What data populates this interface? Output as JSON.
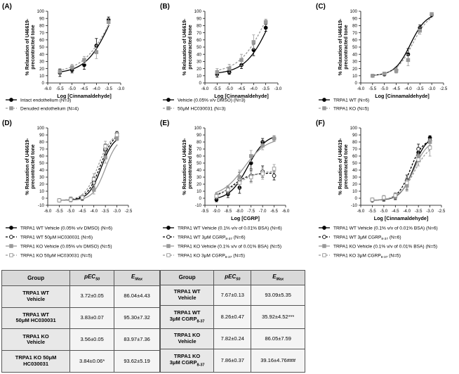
{
  "chart_data": [
    {
      "panel": "(A)",
      "type": "line",
      "xlabel": "Log [Cinnamaldehyde]",
      "ylabel": [
        "% Relaxation of U46619-",
        "precontracted tone"
      ],
      "xlim": [
        -6.0,
        -3.0
      ],
      "xticks": [
        "-6.0",
        "-5.5",
        "-5.0",
        "-4.5",
        "-4.0",
        "-3.5",
        "-3.0"
      ],
      "ylim": [
        0,
        100
      ],
      "yticks": [
        "0",
        "10",
        "20",
        "30",
        "40",
        "50",
        "60",
        "70",
        "80",
        "90",
        "100"
      ],
      "series": [
        {
          "name": "Intact endothelium (N=3)",
          "style": "solid-filled",
          "x": [
            -5.5,
            -5.0,
            -4.5,
            -4.0,
            -3.5
          ],
          "y": [
            14,
            18,
            25,
            52,
            88
          ],
          "err": [
            5,
            4,
            6,
            10,
            4
          ],
          "fit": {
            "bottom": 13,
            "top": 160,
            "logec50": -3.4,
            "hill": 0.85
          }
        },
        {
          "name": "Denuded endothelium (N=4)",
          "style": "dashed-gray",
          "x": [
            -5.5,
            -5.0,
            -4.5,
            -4.0,
            -3.5
          ],
          "y": [
            16,
            22,
            32,
            43,
            85
          ],
          "err": [
            4,
            4,
            5,
            9,
            5
          ],
          "fit": {
            "bottom": 14,
            "top": 160,
            "logec50": -3.4,
            "hill": 0.75
          }
        }
      ]
    },
    {
      "panel": "(B)",
      "type": "line",
      "xlabel": "Log [Cinnamaldehyde]",
      "ylabel": [
        "% Relaxation of U46619-",
        "precontracted tone"
      ],
      "xlim": [
        -6.0,
        -3.0
      ],
      "xticks": [
        "-6.0",
        "-5.5",
        "-5.0",
        "-4.5",
        "-4.0",
        "-3.5",
        "-3.0"
      ],
      "ylim": [
        0,
        100
      ],
      "yticks": [
        "0",
        "10",
        "20",
        "30",
        "40",
        "50",
        "60",
        "70",
        "80",
        "90",
        "100"
      ],
      "series": [
        {
          "name": "Vehicle (0.05% v/v DMSO) (N=3)",
          "style": "solid-filled",
          "x": [
            -5.5,
            -5.0,
            -4.5,
            -4.0,
            -3.5
          ],
          "y": [
            12,
            15,
            25,
            46,
            77
          ],
          "err": [
            4,
            3,
            5,
            8,
            5
          ],
          "fit": {
            "bottom": 12,
            "top": 160,
            "logec50": -3.3,
            "hill": 0.85
          }
        },
        {
          "name": "50μM HC030031 (N=3)",
          "style": "dashed-gray",
          "x": [
            -5.5,
            -5.0,
            -4.5,
            -4.0,
            -3.5
          ],
          "y": [
            15,
            20,
            32,
            57,
            85
          ],
          "err": [
            5,
            6,
            8,
            10,
            4
          ],
          "fit": {
            "bottom": 14,
            "top": 160,
            "logec50": -3.5,
            "hill": 0.8
          }
        }
      ]
    },
    {
      "panel": "(C)",
      "type": "line",
      "xlabel": "Log [Cinnamaldehyde]",
      "ylabel": [
        "% Relaxation of U46619-",
        "precontracted tone"
      ],
      "xlim": [
        -6.0,
        -2.5
      ],
      "xticks": [
        "-6.0",
        "-5.5",
        "-5.0",
        "-4.5",
        "-4.0",
        "-3.5",
        "-3.0",
        "-2.5"
      ],
      "ylim": [
        0,
        100
      ],
      "yticks": [
        "0",
        "10",
        "20",
        "30",
        "40",
        "50",
        "60",
        "70",
        "80",
        "90",
        "100"
      ],
      "series": [
        {
          "name": "TRPA1 WT (N=6)",
          "style": "solid-filled",
          "x": [
            -5.5,
            -5.0,
            -4.5,
            -4.0,
            -3.5,
            -3.0
          ],
          "y": [
            10,
            12,
            18,
            40,
            77,
            95
          ],
          "err": [
            2,
            2,
            4,
            8,
            4,
            2
          ],
          "fit": {
            "bottom": 10,
            "top": 98,
            "logec50": -3.9,
            "hill": 1.3
          }
        },
        {
          "name": "TRPA1 KO (N=5)",
          "style": "dashed-gray",
          "x": [
            -5.5,
            -5.0,
            -4.5,
            -4.0,
            -3.5,
            -3.0
          ],
          "y": [
            10,
            13,
            17,
            32,
            73,
            96
          ],
          "err": [
            2,
            2,
            3,
            8,
            5,
            2
          ],
          "fit": {
            "bottom": 10,
            "top": 100,
            "logec50": -3.8,
            "hill": 1.2
          }
        }
      ]
    },
    {
      "panel": "(D)",
      "type": "line",
      "xlabel": "",
      "ylabel": [
        "% Relaxation of U46619-",
        "precontracted tone"
      ],
      "xlim": [
        -6.0,
        -2.5
      ],
      "xticks": [
        "-6.0",
        "-5.5",
        "-5.0",
        "-4.5",
        "-4.0",
        "-3.5",
        "-3.0",
        "-2.5"
      ],
      "ylim": [
        -10,
        100
      ],
      "yticks": [
        "-10",
        "0",
        "10",
        "20",
        "30",
        "40",
        "50",
        "60",
        "70",
        "80",
        "90",
        "100"
      ],
      "series": [
        {
          "name": "TRPA1 WT Vehicle (0.05% v/v DMSO) (N=6)",
          "style": "solid-filled",
          "x": [
            -5.5,
            -5.0,
            -4.5,
            -4.0,
            -3.5,
            -3.0
          ],
          "y": [
            -3,
            -2,
            1,
            23,
            68,
            88
          ],
          "err": [
            2,
            3,
            3,
            7,
            6,
            3
          ],
          "fit": {
            "bottom": -3,
            "top": 90,
            "logec50": -3.68,
            "hill": 1.6
          }
        },
        {
          "name": "TRPA1 WT 50μM HC030031 (N=6)",
          "style": "dashed-open",
          "x": [
            -5.5,
            -5.0,
            -4.5,
            -4.0,
            -3.5,
            -3.0
          ],
          "y": [
            -3,
            -2,
            0,
            22,
            70,
            92
          ],
          "err": [
            2,
            3,
            3,
            8,
            7,
            3
          ],
          "fit": {
            "bottom": -3,
            "top": 95,
            "logec50": -3.72,
            "hill": 1.5
          }
        },
        {
          "name": "TRPA1 KO Vehicle (0.05% v/v DMSO) (N=5)",
          "style": "solid-gray",
          "x": [
            -5.5,
            -5.0,
            -4.5,
            -4.0,
            -3.5,
            -3.0
          ],
          "y": [
            -3,
            -1,
            1,
            12,
            58,
            85
          ],
          "err": [
            2,
            3,
            3,
            6,
            8,
            3
          ],
          "fit": {
            "bottom": -3,
            "top": 88,
            "logec50": -3.5,
            "hill": 1.6
          }
        },
        {
          "name": "TRPA1 KO 50μM HC030031 (N=5)",
          "style": "dashed-gray-open",
          "x": [
            -5.5,
            -5.0,
            -4.5,
            -4.0,
            -3.5,
            -3.0
          ],
          "y": [
            -3,
            -2,
            1,
            27,
            74,
            90
          ],
          "err": [
            2,
            3,
            3,
            8,
            7,
            4
          ],
          "fit": {
            "bottom": -3,
            "top": 94,
            "logec50": -3.82,
            "hill": 1.5
          }
        }
      ]
    },
    {
      "panel": "(E)",
      "type": "line",
      "xlabel": "Log [CGRP]",
      "ylabel": [
        "% Relaxation of U46619-",
        "precontracted tone"
      ],
      "xlim": [
        -9.5,
        -6.0
      ],
      "xticks": [
        "-9.5",
        "-9.0",
        "-8.5",
        "-8.0",
        "-7.5",
        "-7.0",
        "-6.5",
        "-6.0"
      ],
      "ylim": [
        -10,
        100
      ],
      "yticks": [
        "-10",
        "0",
        "10",
        "20",
        "30",
        "40",
        "50",
        "60",
        "70",
        "80",
        "90",
        "100"
      ],
      "series": [
        {
          "name": "TRPA1 WT Vehicle (0.1% v/v of 0.01% BSA) (N=6)",
          "style": "solid-filled",
          "x": [
            -9.0,
            -8.5,
            -8.0,
            -7.5,
            -7.0,
            -6.5
          ],
          "y": [
            -2,
            6,
            15,
            50,
            80,
            85
          ],
          "err": [
            3,
            5,
            8,
            8,
            5,
            4
          ],
          "fit": {
            "bottom": -3,
            "top": 92,
            "logec50": -7.65,
            "hill": 1.1
          }
        },
        {
          "name": "TRPA1 WT 3μM CGRP8-37 (N=6)",
          "style": "dashed-open",
          "x": [
            -9.0,
            -8.5,
            -8.0,
            -7.5,
            -7.0,
            -6.5
          ],
          "y": [
            2,
            10,
            27,
            32,
            38,
            32
          ],
          "err": [
            4,
            6,
            10,
            8,
            8,
            6
          ],
          "fit": {
            "bottom": 0,
            "top": 36,
            "logec50": -8.3,
            "hill": 1.2
          }
        },
        {
          "name": "TRPA1 KO Vehicle (0.1% v/v of 0.01% BSA) (N=5)",
          "style": "solid-gray",
          "x": [
            -9.0,
            -8.5,
            -8.0,
            -7.5,
            -7.0,
            -6.5
          ],
          "y": [
            3,
            12,
            30,
            60,
            75,
            85
          ],
          "err": [
            4,
            6,
            10,
            8,
            6,
            4
          ],
          "fit": {
            "bottom": 2,
            "top": 86,
            "logec50": -7.8,
            "hill": 0.9
          }
        },
        {
          "name": "TRPA1 KO 3μM CGRP8-37 (N=5)",
          "style": "dashed-gray-open",
          "x": [
            -9.0,
            -8.5,
            -8.0,
            -7.5,
            -7.0,
            -6.5
          ],
          "y": [
            3,
            12,
            22,
            30,
            35,
            42
          ],
          "err": [
            4,
            6,
            8,
            8,
            8,
            6
          ],
          "fit": {
            "bottom": 2,
            "top": 39,
            "logec50": -8.1,
            "hill": 1.0
          }
        }
      ]
    },
    {
      "panel": "(F)",
      "type": "line",
      "xlabel": "Log [Cinnamaldehyde]",
      "ylabel": [
        "% Relaxation of U46619-",
        "precontracted tone"
      ],
      "xlim": [
        -6.0,
        -2.5
      ],
      "xticks": [
        "-6.0",
        "-5.5",
        "-5.0",
        "-4.5",
        "-4.0",
        "-3.5",
        "-3.0",
        "-2.5"
      ],
      "ylim": [
        -10,
        100
      ],
      "yticks": [
        "-10",
        "0",
        "10",
        "20",
        "30",
        "40",
        "50",
        "60",
        "70",
        "80",
        "90",
        "100"
      ],
      "series": [
        {
          "name": "TRPA1 WT Vehicle (0.1% v/v of 0.01% BSA) (N=6)",
          "style": "solid-filled",
          "x": [
            -5.5,
            -5.0,
            -4.5,
            -4.0,
            -3.5,
            -3.0
          ],
          "y": [
            -2,
            -1,
            2,
            20,
            65,
            86
          ],
          "err": [
            2,
            3,
            4,
            8,
            7,
            3
          ],
          "fit": {
            "bottom": -3,
            "top": 90,
            "logec50": -3.7,
            "hill": 1.5
          }
        },
        {
          "name": "TRPA1 WT 3μM CGRP8-37 (N=6)",
          "style": "dashed-open",
          "x": [
            -5.5,
            -5.0,
            -4.5,
            -4.0,
            -3.5,
            -3.0
          ],
          "y": [
            -3,
            -1,
            3,
            25,
            70,
            82
          ],
          "err": [
            2,
            3,
            4,
            8,
            7,
            4
          ],
          "fit": {
            "bottom": -3,
            "top": 85,
            "logec50": -3.85,
            "hill": 1.6
          }
        },
        {
          "name": "TRPA1 KO Vehicle (0.1% v/v of 0.01% BSA) (N=5)",
          "style": "solid-gray",
          "x": [
            -5.5,
            -5.0,
            -4.5,
            -4.0,
            -3.5,
            -3.0
          ],
          "y": [
            -2,
            0,
            3,
            18,
            60,
            80
          ],
          "err": [
            2,
            3,
            4,
            8,
            8,
            5
          ],
          "fit": {
            "bottom": -3,
            "top": 84,
            "logec50": -3.7,
            "hill": 1.4
          }
        },
        {
          "name": "TRPA1 KO 3μM CGRP8-37 (N=5)",
          "style": "dashed-gray-open",
          "x": [
            -5.5,
            -5.0,
            -4.5,
            -4.0,
            -3.5,
            -3.0
          ],
          "y": [
            -2,
            1,
            4,
            22,
            55,
            72
          ],
          "err": [
            2,
            3,
            4,
            8,
            9,
            12
          ],
          "fit": {
            "bottom": -3,
            "top": 78,
            "logec50": -3.68,
            "hill": 1.3
          }
        }
      ]
    }
  ],
  "tables": {
    "left": {
      "headers": [
        "Group",
        "pEC",
        "50",
        "E",
        "Max"
      ],
      "rows": [
        {
          "group": [
            "TRPA1 WT",
            "Vehicle"
          ],
          "pec50": "3.72±0.05",
          "emax": "86.04±4.43"
        },
        {
          "group": [
            "TRPA1 WT",
            "50μM HC030031"
          ],
          "pec50": "3.83±0.07",
          "emax": "95.30±7.32"
        },
        {
          "group": [
            "TRPA1 KO",
            "Vehicle"
          ],
          "pec50": "3.56±0.05",
          "emax": "83.97±7.36"
        },
        {
          "group": [
            "TRPA1 KO 50μM",
            "HC030031"
          ],
          "pec50": "3.84±0.06*",
          "emax": "93.62±5.19"
        }
      ]
    },
    "right": {
      "headers": [
        "Group",
        "pEC",
        "50",
        "E",
        "Max"
      ],
      "rows": [
        {
          "group": [
            "TRPA1 WT",
            "Vehicle"
          ],
          "pec50": "7.67±0.13",
          "emax": "93.09±5.35"
        },
        {
          "group": [
            "TRPA1 WT",
            "3μM CGRP",
            "8-37"
          ],
          "pec50": "8.26±0.47",
          "emax": "35.92±4.52***"
        },
        {
          "group": [
            "TRPA1 KO",
            "Vehicle"
          ],
          "pec50": "7.82±0.24",
          "emax": "86.05±7.59"
        },
        {
          "group": [
            "TRPA1 KO",
            "3μM CGRP",
            "8-37"
          ],
          "pec50": "7.86±0.37",
          "emax": "39.16±4.76###"
        }
      ]
    }
  }
}
